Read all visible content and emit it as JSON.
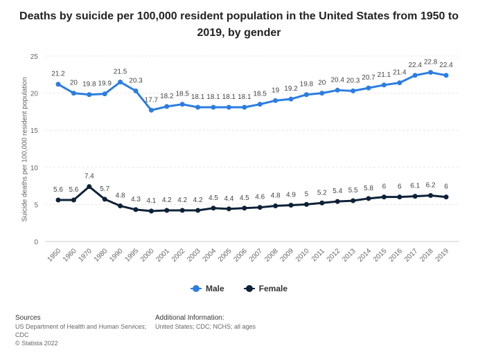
{
  "chart_data": {
    "type": "line",
    "title": "Deaths by suicide per 100,000 resident population in the United States from 1950 to 2019, by gender",
    "ylabel": "Suicide deaths per 100,000 resident population",
    "xlabel": "",
    "ylim": [
      0,
      25
    ],
    "yticks": [
      "0",
      "5",
      "10",
      "15",
      "20",
      "25"
    ],
    "grid": true,
    "legend": "bottom-center",
    "categories": [
      "1950",
      "1960",
      "1970",
      "1980",
      "1990",
      "1995",
      "2000",
      "2001",
      "2002",
      "2003",
      "2004",
      "2005",
      "2006",
      "2007",
      "2008",
      "2009",
      "2010",
      "2011",
      "2012",
      "2013",
      "2014",
      "2015",
      "2016",
      "2017",
      "2018",
      "2019"
    ],
    "series": [
      {
        "name": "Male",
        "color": "#2b7de1",
        "values": [
          21.2,
          20,
          19.8,
          19.9,
          21.5,
          20.3,
          17.7,
          18.2,
          18.5,
          18.1,
          18.1,
          18.1,
          18.1,
          18.5,
          19,
          19.2,
          19.8,
          20,
          20.4,
          20.3,
          20.7,
          21.1,
          21.4,
          22.4,
          22.8,
          22.4
        ],
        "labels": [
          "21.2",
          "20",
          "19.8",
          "19.9",
          "21.5",
          "20.3",
          "17.7",
          "18.2",
          "18.5",
          "18.1",
          "18.1",
          "18.1",
          "18.1",
          "18.5",
          "19",
          "19.2",
          "19.8",
          "20",
          "20.4",
          "20.3",
          "20.7",
          "21.1",
          "21.4",
          "22.4",
          "22.8",
          "22.4"
        ]
      },
      {
        "name": "Female",
        "color": "#0d2137",
        "values": [
          5.6,
          5.6,
          7.4,
          5.7,
          4.8,
          4.3,
          4.1,
          4.2,
          4.2,
          4.2,
          4.5,
          4.4,
          4.5,
          4.6,
          4.8,
          4.9,
          5,
          5.2,
          5.4,
          5.5,
          5.8,
          6,
          6,
          6.1,
          6.2,
          6
        ],
        "labels": [
          "5.6",
          "5.6",
          "7.4",
          "5.7",
          "4.8",
          "4.3",
          "4.1",
          "4.2",
          "4.2",
          "4.2",
          "4.5",
          "4.4",
          "4.5",
          "4.6",
          "4.8",
          "4.9",
          "5",
          "5.2",
          "5.4",
          "5.5",
          "5.8",
          "6",
          "6",
          "6.1",
          "6.2",
          "6"
        ]
      }
    ]
  },
  "footer": {
    "sources_heading": "Sources",
    "sources_text": "US Department of Health and Human Services; CDC",
    "copyright": "© Statista 2022",
    "additional_heading": "Additional Information:",
    "additional_text": "United States; CDC; NCHS; all ages"
  }
}
